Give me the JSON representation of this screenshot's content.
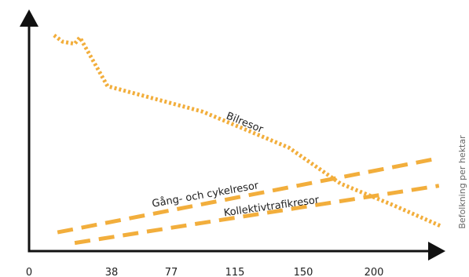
{
  "chart_data": {
    "type": "line",
    "title": "",
    "xlabel": "",
    "ylabel": "Befolkning per hektar",
    "x_ticks": [
      "0",
      "38",
      "77",
      "115",
      "150",
      "200"
    ],
    "grid": false,
    "legend": "none",
    "y_ticks_shown": false,
    "series": [
      {
        "name": "Bilresor",
        "style": "dotted",
        "color": "#F2AE3C",
        "points": [
          [
            14,
            100
          ],
          [
            19,
            97
          ],
          [
            26,
            96
          ],
          [
            29,
            99
          ],
          [
            45,
            76
          ],
          [
            100,
            64
          ],
          [
            150,
            47
          ],
          [
            180,
            30
          ],
          [
            210,
            20
          ],
          [
            238,
            10
          ]
        ]
      },
      {
        "name": "Gång- och cykelresor",
        "style": "dashed",
        "color": "#F2AE3C",
        "points": [
          [
            16,
            7
          ],
          [
            237,
            42
          ]
        ]
      },
      {
        "name": "Kollektivtrafikresor",
        "style": "dashed",
        "color": "#F2AE3C",
        "points": [
          [
            26,
            2
          ],
          [
            237,
            29
          ]
        ]
      }
    ]
  }
}
